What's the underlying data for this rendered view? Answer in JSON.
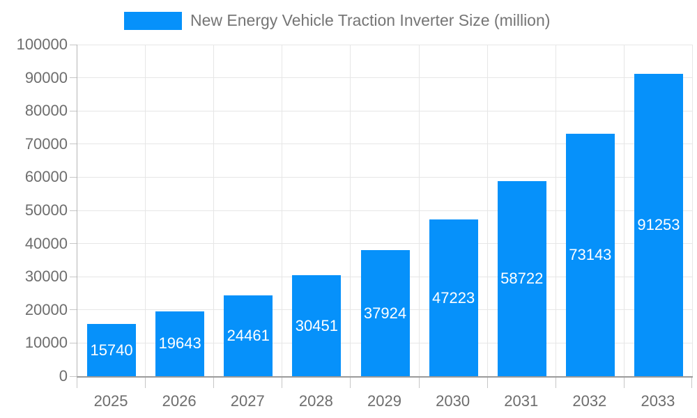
{
  "legend": {
    "label": "New Energy Vehicle Traction Inverter Size (million)"
  },
  "colors": {
    "bar": "#0691FA",
    "bar_label": "#FFFFFF",
    "axis_text": "#6D6D6D",
    "legend_text": "#757575",
    "gridline": "#E6E6E6"
  },
  "chart_data": {
    "type": "bar",
    "title": "New Energy Vehicle Traction Inverter Size (million)",
    "categories": [
      "2025",
      "2026",
      "2027",
      "2028",
      "2029",
      "2030",
      "2031",
      "2032",
      "2033"
    ],
    "values": [
      15740,
      19643,
      24461,
      30451,
      37924,
      47223,
      58722,
      73143,
      91253
    ],
    "series": [
      {
        "name": "New Energy Vehicle Traction Inverter Size (million)",
        "values": [
          15740,
          19643,
          24461,
          30451,
          37924,
          47223,
          58722,
          73143,
          91253
        ]
      }
    ],
    "xlabel": "",
    "ylabel": "",
    "ylim": [
      0,
      100000
    ],
    "ytick_step": 10000,
    "ytick_labels": [
      "0",
      "10000",
      "20000",
      "30000",
      "40000",
      "50000",
      "60000",
      "70000",
      "80000",
      "90000",
      "100000"
    ],
    "grid": true,
    "legend_position": "top-center",
    "bar_label_position": "center",
    "bar_label_color": "#FFFFFF",
    "bar_color": "#0691FA"
  }
}
